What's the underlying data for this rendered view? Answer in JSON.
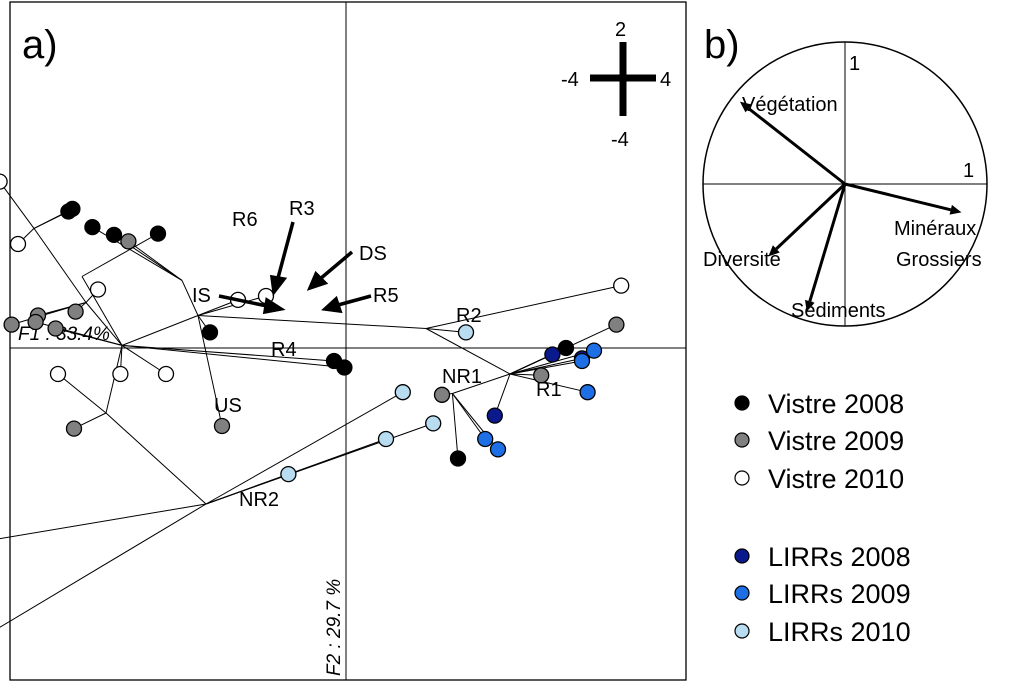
{
  "panel_a_label": "a)",
  "panel_b_label": "b)",
  "colors": {
    "Vistre 2008": "#000000",
    "Vistre 2009": "#808080",
    "Vistre 2010": "#ffffff",
    "LIRRs 2008": "#0a1a8c",
    "LIRRs 2009": "#1e6fe6",
    "LIRRs 2010": "#b8dcf0"
  },
  "chart_data": [
    {
      "type": "scatter",
      "title": "a)",
      "xlabel": "F1 : 33.4%",
      "ylabel": "F2 : 29.7 %",
      "scale_bar": {
        "top": "2",
        "left": "-4",
        "right": "4",
        "bottom": "-4"
      },
      "legend": {
        "groups": [
          [
            "Vistre 2008",
            "Vistre 2009",
            "Vistre 2010"
          ],
          [
            "LIRRs 2008",
            "LIRRs 2009",
            "LIRRs 2010"
          ]
        ]
      },
      "centroid_labels": [
        "R6",
        "R3",
        "DS",
        "IS",
        "R5",
        "R4",
        "US",
        "NR2",
        "R2",
        "NR1",
        "R1"
      ],
      "series": [
        {
          "name": "Vistre 2008",
          "points": [
            [
              -3.47,
              1.05
            ],
            [
              -3.42,
              1.07
            ],
            [
              -2.35,
              0.88
            ],
            [
              -3.17,
              0.93
            ],
            [
              -2.9,
              0.87
            ],
            [
              -1.7,
              0.12
            ],
            [
              -0.15,
              -0.1
            ],
            [
              -0.02,
              -0.15
            ],
            [
              2.75,
              0.0
            ],
            [
              1.4,
              -0.85
            ],
            [
              -5.5,
              -2.58
            ]
          ]
        },
        {
          "name": "Vistre 2009",
          "points": [
            [
              -2.72,
              0.82
            ],
            [
              -3.85,
              0.25
            ],
            [
              -4.18,
              0.18
            ],
            [
              -3.88,
              0.2
            ],
            [
              -3.63,
              0.15
            ],
            [
              -1.55,
              -0.6
            ],
            [
              -3.4,
              -0.62
            ],
            [
              -3.38,
              0.28
            ],
            [
              2.44,
              -0.21
            ],
            [
              3.38,
              0.18
            ],
            [
              1.2,
              -0.36
            ]
          ]
        },
        {
          "name": "Vistre 2010",
          "points": [
            [
              -4.33,
              1.28
            ],
            [
              -4.1,
              0.8
            ],
            [
              -3.1,
              0.45
            ],
            [
              -1.35,
              0.37
            ],
            [
              -1.0,
              0.4
            ],
            [
              -2.25,
              -0.2
            ],
            [
              -2.82,
              -0.2
            ],
            [
              -3.6,
              -0.2
            ],
            [
              3.44,
              0.48
            ],
            [
              -5.42,
              -1.58
            ]
          ]
        },
        {
          "name": "LIRRs 2008",
          "points": [
            [
              2.95,
              -0.08
            ],
            [
              2.58,
              -0.05
            ],
            [
              1.86,
              -0.52
            ]
          ]
        },
        {
          "name": "LIRRs 2009",
          "points": [
            [
              2.95,
              -0.1
            ],
            [
              3.1,
              -0.02
            ],
            [
              3.02,
              -0.34
            ],
            [
              1.74,
              -0.7
            ],
            [
              1.9,
              -0.78
            ]
          ]
        },
        {
          "name": "LIRRs 2010",
          "points": [
            [
              1.5,
              0.12
            ],
            [
              0.71,
              -0.34
            ],
            [
              1.09,
              -0.58
            ],
            [
              0.5,
              -0.7
            ],
            [
              -0.72,
              -0.97
            ]
          ]
        }
      ],
      "centroids": {
        "R6": [
          -3.9,
          0.92
        ],
        "R3": [
          -3.3,
          0.55
        ],
        "DS": [
          -2.05,
          0.52
        ],
        "IS": [
          -3.25,
          0.35
        ],
        "R5": [
          -1.85,
          0.25
        ],
        "R4": [
          -2.8,
          0.02
        ],
        "US": [
          -3.0,
          -0.5
        ],
        "NR2": [
          -1.75,
          -1.2
        ],
        "R2": [
          1.0,
          0.15
        ],
        "NR1": [
          1.33,
          -0.35
        ],
        "R1": [
          2.05,
          -0.2
        ]
      }
    },
    {
      "type": "biplot",
      "title": "b)",
      "axis_ticks": {
        "x": "1",
        "y": "1"
      },
      "variables": [
        {
          "name": "Végétation",
          "x": -0.74,
          "y": 0.58
        },
        {
          "name": "Minéraux Grossiers",
          "x": 0.82,
          "y": -0.2
        },
        {
          "name": "Diversité",
          "x": -0.54,
          "y": -0.51
        },
        {
          "name": "Sédiments",
          "x": -0.27,
          "y": -0.9
        }
      ],
      "variable_label_lines": {
        "Minéraux Grossiers": [
          "Minéraux",
          "Grossiers"
        ]
      }
    }
  ]
}
